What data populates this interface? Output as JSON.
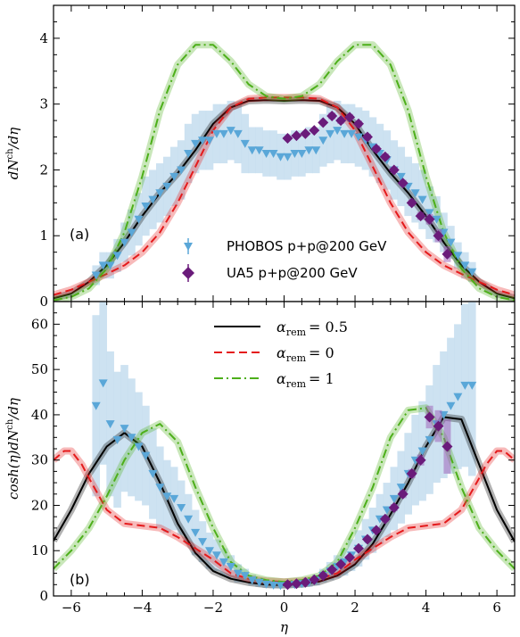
{
  "chart_data": [
    {
      "type": "line",
      "panel_label": "(a)",
      "ylabel": "dN^ch/dη",
      "ylabel_main": "dN",
      "ylabel_sup": "ch",
      "ylabel_tail": "/dη",
      "xlim": [
        -6.5,
        6.5
      ],
      "ylim": [
        0,
        4.5
      ],
      "xticks": [
        "-6",
        "-4",
        "-2",
        "0",
        "2",
        "4",
        "6"
      ],
      "yticks": [
        "0",
        "1",
        "2",
        "3",
        "4"
      ],
      "legend": {
        "placement": "lower-center",
        "entries": [
          "PHOBOS p+p@200 GeV",
          "UA5 p+p@200 GeV"
        ]
      },
      "series": [
        {
          "name": "α_rem = 0.5",
          "style": "solid",
          "color": "#000000",
          "x": [
            -6.5,
            -6,
            -5.5,
            -5,
            -4.5,
            -4,
            -3.5,
            -3,
            -2.5,
            -2,
            -1.5,
            -1,
            -0.5,
            0,
            0.5,
            1,
            1.5,
            2,
            2.5,
            3,
            3.5,
            4,
            4.5,
            5,
            5.5,
            6,
            6.5
          ],
          "y": [
            0.05,
            0.12,
            0.3,
            0.55,
            0.9,
            1.3,
            1.65,
            1.95,
            2.3,
            2.7,
            2.95,
            3.05,
            3.06,
            3.05,
            3.06,
            3.05,
            2.95,
            2.7,
            2.3,
            1.95,
            1.65,
            1.3,
            0.9,
            0.55,
            0.3,
            0.12,
            0.05
          ]
        },
        {
          "name": "α_rem = 0",
          "style": "dashed",
          "color": "#e41a1c",
          "x": [
            -6.5,
            -6,
            -5.5,
            -5,
            -4.5,
            -4,
            -3.5,
            -3,
            -2.5,
            -2,
            -1.5,
            -1,
            -0.5,
            0,
            0.5,
            1,
            1.5,
            2,
            2.5,
            3,
            3.5,
            4,
            4.5,
            5,
            5.5,
            6,
            6.5
          ],
          "y": [
            0.1,
            0.18,
            0.3,
            0.42,
            0.55,
            0.75,
            1.05,
            1.5,
            2.05,
            2.6,
            2.95,
            3.08,
            3.1,
            3.1,
            3.1,
            3.08,
            2.95,
            2.6,
            2.05,
            1.5,
            1.05,
            0.75,
            0.55,
            0.42,
            0.3,
            0.18,
            0.1
          ]
        },
        {
          "name": "α_rem = 1",
          "style": "dashdot",
          "color": "#4daf1a",
          "x": [
            -6.5,
            -6,
            -5.5,
            -5,
            -4.5,
            -4,
            -3.5,
            -3,
            -2.5,
            -2,
            -1.5,
            -1,
            -0.5,
            0,
            0.5,
            1,
            1.5,
            2,
            2.5,
            3,
            3.5,
            4,
            4.5,
            5,
            5.5,
            6,
            6.5
          ],
          "y": [
            0.02,
            0.07,
            0.2,
            0.5,
            1.05,
            1.9,
            2.9,
            3.6,
            3.9,
            3.9,
            3.65,
            3.3,
            3.12,
            3.08,
            3.12,
            3.3,
            3.65,
            3.9,
            3.9,
            3.6,
            2.9,
            1.9,
            1.05,
            0.5,
            0.2,
            0.07,
            0.02
          ]
        },
        {
          "name": "PHOBOS p+p@200 GeV",
          "style": "markers-triangle",
          "color": "#5aa7d8",
          "x": [
            -5.3,
            -5.1,
            -4.9,
            -4.7,
            -4.5,
            -4.3,
            -4.1,
            -3.9,
            -3.7,
            -3.5,
            -3.3,
            -3.1,
            -2.9,
            -2.7,
            -2.5,
            -2.3,
            -2.1,
            -1.9,
            -1.7,
            -1.5,
            -1.3,
            -1.1,
            -0.9,
            -0.7,
            -0.5,
            -0.3,
            -0.1,
            0.1,
            0.3,
            0.5,
            0.7,
            0.9,
            1.1,
            1.3,
            1.5,
            1.7,
            1.9,
            2.1,
            2.3,
            2.5,
            2.7,
            2.9,
            3.1,
            3.3,
            3.5,
            3.7,
            3.9,
            4.1,
            4.3,
            4.5,
            4.7,
            4.9,
            5.1,
            5.3
          ],
          "y": [
            0.4,
            0.55,
            0.55,
            0.7,
            0.9,
            1.05,
            1.25,
            1.45,
            1.55,
            1.65,
            1.75,
            1.9,
            2.0,
            2.25,
            2.4,
            2.45,
            2.45,
            2.55,
            2.55,
            2.6,
            2.55,
            2.4,
            2.3,
            2.3,
            2.25,
            2.25,
            2.2,
            2.2,
            2.25,
            2.25,
            2.3,
            2.3,
            2.45,
            2.55,
            2.6,
            2.55,
            2.55,
            2.5,
            2.45,
            2.35,
            2.25,
            2.15,
            2.0,
            1.9,
            1.75,
            1.65,
            1.55,
            1.35,
            1.25,
            1.05,
            0.9,
            0.7,
            0.55,
            0.45
          ],
          "err": [
            0.15,
            0.2,
            0.2,
            0.25,
            0.3,
            0.35,
            0.4,
            0.45,
            0.45,
            0.45,
            0.45,
            0.45,
            0.45,
            0.45,
            0.45,
            0.45,
            0.45,
            0.45,
            0.45,
            0.45,
            0.45,
            0.45,
            0.35,
            0.35,
            0.35,
            0.35,
            0.35,
            0.35,
            0.35,
            0.35,
            0.35,
            0.35,
            0.4,
            0.45,
            0.45,
            0.45,
            0.45,
            0.45,
            0.45,
            0.45,
            0.45,
            0.45,
            0.45,
            0.45,
            0.45,
            0.45,
            0.45,
            0.4,
            0.35,
            0.3,
            0.25,
            0.2,
            0.2,
            0.15
          ]
        },
        {
          "name": "UA5 p+p@200 GeV",
          "style": "markers-diamond",
          "color": "#6a1b7a",
          "x": [
            0.1,
            0.35,
            0.6,
            0.85,
            1.1,
            1.35,
            1.6,
            1.85,
            2.1,
            2.35,
            2.6,
            2.85,
            3.1,
            3.35,
            3.6,
            3.85,
            4.1,
            4.35,
            4.6
          ],
          "y": [
            2.48,
            2.52,
            2.55,
            2.6,
            2.72,
            2.82,
            2.75,
            2.8,
            2.7,
            2.5,
            2.32,
            2.2,
            2.0,
            1.8,
            1.5,
            1.3,
            1.25,
            1.0,
            0.72
          ],
          "err": [
            0.04,
            0.04,
            0.04,
            0.04,
            0.04,
            0.05,
            0.05,
            0.05,
            0.05,
            0.05,
            0.05,
            0.05,
            0.05,
            0.05,
            0.05,
            0.06,
            0.08,
            0.1,
            0.12
          ]
        }
      ]
    },
    {
      "type": "line",
      "panel_label": "(b)",
      "xlabel": "η",
      "ylabel": "cosh(η)dN^ch/dη",
      "ylabel_main": "cosh(η)dN",
      "ylabel_sup": "ch",
      "ylabel_tail": "/dη",
      "xlim": [
        -6.5,
        6.5
      ],
      "ylim": [
        0,
        65
      ],
      "xticks": [
        "-6",
        "-4",
        "-2",
        "0",
        "2",
        "4",
        "6"
      ],
      "yticks": [
        "0",
        "10",
        "20",
        "30",
        "40",
        "50",
        "60"
      ],
      "legend": {
        "placement": "top-center",
        "entries": [
          "α_rem = 0.5",
          "α_rem = 0",
          "α_rem = 1"
        ],
        "entry_sub": "rem",
        "entry_values": [
          "= 0.5",
          "= 0",
          "= 1"
        ]
      },
      "series": [
        {
          "name": "α_rem = 0.5",
          "style": "solid",
          "color": "#000000",
          "x": [
            -6.5,
            -6,
            -5.5,
            -5,
            -4.5,
            -4,
            -3.5,
            -3,
            -2.5,
            -2,
            -1.5,
            -1,
            -0.5,
            0,
            0.5,
            1,
            1.5,
            2,
            2.5,
            3,
            3.5,
            4,
            4.5,
            5,
            5.5,
            6,
            6.5
          ],
          "y": [
            12.2,
            19,
            27,
            33,
            36,
            33,
            25,
            16,
            9.5,
            5.5,
            3.8,
            3.0,
            2.5,
            2.4,
            2.6,
            3.2,
            4.5,
            7.0,
            11.5,
            18,
            25,
            33,
            39.5,
            39,
            29,
            19,
            12
          ]
        },
        {
          "name": "α_rem = 0",
          "style": "dashed",
          "color": "#e41a1c",
          "x": [
            -6.5,
            -6.2,
            -6,
            -5.7,
            -5.5,
            -5,
            -4.5,
            -4,
            -3.5,
            -3,
            -2.5,
            -2,
            -1.5,
            -1,
            -0.5,
            0,
            0.5,
            1,
            1.5,
            2,
            2.5,
            3,
            3.5,
            4,
            4.5,
            5,
            5.5,
            5.7,
            6,
            6.2,
            6.5
          ],
          "y": [
            30,
            32,
            32,
            29,
            26,
            19,
            16,
            15.5,
            15,
            13,
            10.5,
            8,
            5,
            3.8,
            3.3,
            3.1,
            3.3,
            3.8,
            5,
            8,
            10.5,
            13,
            15,
            15.5,
            16,
            19,
            26,
            29,
            32,
            32,
            30
          ]
        },
        {
          "name": "α_rem = 1",
          "style": "dashdot",
          "color": "#4daf1a",
          "x": [
            -6.5,
            -6,
            -5.5,
            -5,
            -4.5,
            -4,
            -3.5,
            -3,
            -2.5,
            -2,
            -1.5,
            -1,
            -0.5,
            0,
            0.5,
            1,
            1.5,
            2,
            2.5,
            3,
            3.5,
            4,
            4.5,
            5,
            5.5,
            6,
            6.5
          ],
          "y": [
            6,
            10,
            15,
            22,
            30,
            36,
            38,
            34,
            24,
            15,
            7.5,
            4.5,
            3.5,
            3.1,
            3.5,
            4.5,
            7.5,
            15,
            24,
            35,
            41,
            41.5,
            35,
            24,
            15,
            10,
            6
          ]
        },
        {
          "name": "PHOBOS p+p@200 GeV",
          "style": "markers-triangle",
          "color": "#5aa7d8",
          "x": [
            -5.3,
            -5.1,
            -4.9,
            -4.7,
            -4.5,
            -4.3,
            -4.1,
            -3.9,
            -3.7,
            -3.5,
            -3.3,
            -3.1,
            -2.9,
            -2.7,
            -2.5,
            -2.3,
            -2.1,
            -1.9,
            -1.7,
            -1.5,
            -1.3,
            -1.1,
            -0.9,
            -0.7,
            -0.5,
            -0.3,
            -0.1,
            0.1,
            0.3,
            0.5,
            0.7,
            0.9,
            1.1,
            1.3,
            1.5,
            1.7,
            1.9,
            2.1,
            2.3,
            2.5,
            2.7,
            2.9,
            3.1,
            3.3,
            3.5,
            3.7,
            3.9,
            4.1,
            4.3,
            4.5,
            4.7,
            4.9,
            5.1,
            5.3
          ],
          "y": [
            42,
            47,
            38,
            34.5,
            37,
            35,
            33,
            31,
            27,
            24,
            22,
            21.5,
            19.5,
            17,
            14,
            12,
            10,
            9,
            7.5,
            6.5,
            5,
            4.5,
            3.5,
            3,
            2.6,
            2.4,
            2.3,
            2.3,
            2.5,
            2.7,
            3,
            3.5,
            4.5,
            5.5,
            6.5,
            7.5,
            9,
            10.5,
            12.5,
            14.5,
            17,
            19,
            21.5,
            24,
            27,
            30,
            32,
            34.5,
            38,
            40,
            42,
            44,
            46.5,
            46.5
          ],
          "err": [
            20,
            18,
            16,
            15,
            14,
            13,
            12,
            11,
            10,
            9,
            8,
            7,
            6,
            5.5,
            5,
            4.5,
            4,
            3.5,
            3,
            2.5,
            2,
            1.5,
            1.2,
            1,
            0.8,
            0.7,
            0.6,
            0.6,
            0.7,
            0.8,
            1,
            1.2,
            1.5,
            2,
            2.5,
            3,
            3.5,
            4,
            4.5,
            5,
            5.5,
            6,
            7,
            8,
            9,
            10,
            11,
            12,
            13,
            14,
            15,
            16,
            18,
            20
          ]
        },
        {
          "name": "UA5 p+p@200 GeV",
          "style": "markers-diamond",
          "color": "#6a1b7a",
          "x": [
            0.1,
            0.35,
            0.6,
            0.85,
            1.1,
            1.35,
            1.6,
            1.85,
            2.1,
            2.35,
            2.6,
            2.85,
            3.1,
            3.35,
            3.6,
            3.85,
            4.1,
            4.35,
            4.6
          ],
          "y": [
            2.5,
            2.7,
            3.0,
            3.6,
            4.5,
            5.8,
            7.0,
            8.5,
            10.5,
            12.5,
            14.5,
            17,
            19.5,
            22.5,
            27,
            30,
            39.5,
            37.5,
            33
          ],
          "err": [
            0.2,
            0.2,
            0.2,
            0.3,
            0.3,
            0.4,
            0.4,
            0.5,
            0.5,
            0.6,
            0.6,
            0.7,
            0.8,
            0.9,
            1.0,
            1.2,
            2.5,
            3.5,
            6
          ]
        }
      ]
    }
  ]
}
